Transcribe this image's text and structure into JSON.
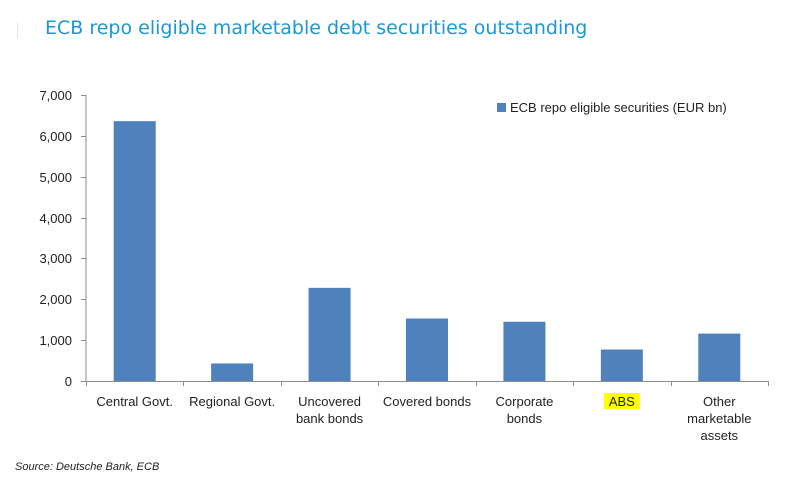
{
  "title": "ECB repo eligible marketable debt securities outstanding",
  "source": "Source: Deutsche Bank, ECB",
  "colors": {
    "bar": "#4f81bd",
    "title": "#1c97d3",
    "highlight": "#ffff00"
  },
  "chart_data": {
    "type": "bar",
    "categories": [
      [
        "Central Govt."
      ],
      [
        "Regional Govt."
      ],
      [
        "Uncovered",
        "bank bonds"
      ],
      [
        "Covered bonds"
      ],
      [
        "Corporate",
        "bonds"
      ],
      [
        "ABS"
      ],
      [
        "Other",
        "marketable",
        "assets"
      ]
    ],
    "highlighted_category_index": 5,
    "series": [
      {
        "name": "ECB repo eligible securities (EUR bn)",
        "values": [
          6360,
          430,
          2280,
          1530,
          1450,
          770,
          1160
        ]
      }
    ],
    "ylim": [
      0,
      7000
    ],
    "yticks": [
      0,
      1000,
      2000,
      3000,
      4000,
      5000,
      6000,
      7000
    ],
    "ytick_labels": [
      "0",
      "1,000",
      "2,000",
      "3,000",
      "4,000",
      "5,000",
      "6,000",
      "7,000"
    ],
    "grid": false,
    "legend_position": "top-right"
  }
}
